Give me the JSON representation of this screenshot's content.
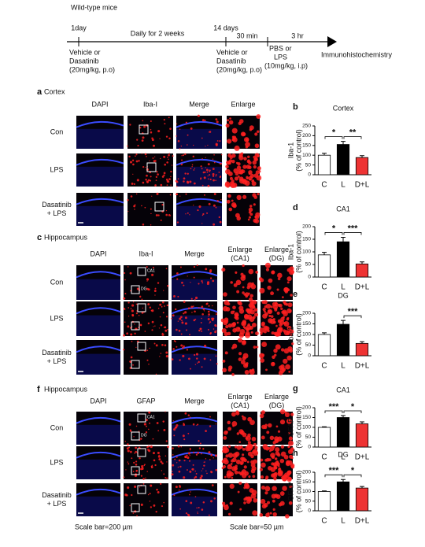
{
  "timeline": {
    "title": "Wild-type mice",
    "day1": "1day",
    "daily": "Daily for 2 weeks",
    "day14": "14 days",
    "min30": "30 min",
    "hr3": "3 hr",
    "treat1": [
      "Vehicle or",
      "Dasatinib",
      "(20mg/kg, p.o)"
    ],
    "treat2": [
      "Vehicle or",
      "Dasatinib",
      "(20mg/kg, p.o)"
    ],
    "treat3": [
      "PBS or",
      "LPS",
      "(10mg/kg, i.p)"
    ],
    "end": "Immunohistochemistry"
  },
  "panels": {
    "a": {
      "letter": "a",
      "title": "Cortex",
      "columns": [
        "DAPI",
        "Iba-I",
        "Merge",
        "Enlarge"
      ],
      "rows": [
        "Con",
        "LPS",
        [
          "Dasatinib",
          "+ LPS"
        ]
      ]
    },
    "c": {
      "letter": "c",
      "title": "Hippocampus",
      "columns": [
        "DAPI",
        "Iba-I",
        "Merge",
        [
          "Enlarge",
          "(CA1)"
        ],
        [
          "Enlarge",
          "(DG)"
        ]
      ],
      "rows": [
        "Con",
        "LPS",
        [
          "Dasatinib",
          "+ LPS"
        ]
      ],
      "insets": [
        "CA1",
        "DG"
      ]
    },
    "f": {
      "letter": "f",
      "title": "Hippocampus",
      "columns": [
        "DAPI",
        "GFAP",
        "Merge",
        [
          "Enlarge",
          "(CA1)"
        ],
        [
          "Enlarge",
          "(DG)"
        ]
      ],
      "rows": [
        "Con",
        "LPS",
        [
          "Dasatinib",
          "+ LPS"
        ]
      ],
      "insets": [
        "CA1",
        "DG"
      ]
    }
  },
  "scale_bars": [
    "Scale bar=200 µm",
    "Scale bar=50 µm"
  ],
  "chart_data": [
    {
      "type": "bar",
      "letter": "b",
      "title": "Cortex",
      "y_label": [
        "Iba-1",
        "(% of control)"
      ],
      "categories": [
        "C",
        "L",
        "D+L"
      ],
      "values": [
        100,
        155,
        88
      ],
      "errors": [
        10,
        16,
        10
      ],
      "colors": [
        "#ffffff",
        "#000000",
        "#ee3333"
      ],
      "ylim": [
        0,
        250
      ],
      "yticks": [
        0,
        50,
        100,
        150,
        200,
        250
      ],
      "significance": [
        {
          "label": "*",
          "from": 0,
          "to": 1
        },
        {
          "label": "**",
          "from": 1,
          "to": 2
        }
      ]
    },
    {
      "type": "bar",
      "letter": "d",
      "title": "CA1",
      "y_label": [
        "Iba-1",
        "(% of control)"
      ],
      "categories": [
        "C",
        "L",
        "D+L"
      ],
      "values": [
        88,
        140,
        52
      ],
      "errors": [
        10,
        18,
        8
      ],
      "colors": [
        "#ffffff",
        "#000000",
        "#ee3333"
      ],
      "ylim": [
        0,
        200
      ],
      "yticks": [
        0,
        50,
        100,
        150,
        200
      ],
      "significance": [
        {
          "label": "*",
          "from": 0,
          "to": 1
        },
        {
          "label": "***",
          "from": 1,
          "to": 2
        }
      ]
    },
    {
      "type": "bar",
      "letter": "e",
      "title": "DG",
      "y_label": [
        "Iba-1",
        "(% of control)"
      ],
      "categories": [
        "C",
        "L",
        "D+L"
      ],
      "values": [
        100,
        148,
        58
      ],
      "errors": [
        8,
        18,
        8
      ],
      "colors": [
        "#ffffff",
        "#000000",
        "#ee3333"
      ],
      "ylim": [
        0,
        200
      ],
      "yticks": [
        0,
        50,
        100,
        150,
        200
      ],
      "significance": [
        {
          "label": "***",
          "from": 1,
          "to": 2
        }
      ]
    },
    {
      "type": "bar",
      "letter": "g",
      "title": "CA1",
      "y_label": [
        "GFAP",
        "(% of control)"
      ],
      "categories": [
        "C",
        "L",
        "D+L"
      ],
      "values": [
        100,
        150,
        118
      ],
      "errors": [
        3,
        10,
        10
      ],
      "colors": [
        "#ffffff",
        "#000000",
        "#ee3333"
      ],
      "ylim": [
        0,
        200
      ],
      "yticks": [
        0,
        50,
        100,
        150,
        200
      ],
      "significance": [
        {
          "label": "***",
          "from": 0,
          "to": 1
        },
        {
          "label": "*",
          "from": 1,
          "to": 2
        }
      ]
    },
    {
      "type": "bar",
      "letter": "h",
      "title": "DG",
      "y_label": [
        "GFAP",
        "(% of control)"
      ],
      "categories": [
        "C",
        "L",
        "D+L"
      ],
      "values": [
        100,
        150,
        118
      ],
      "errors": [
        3,
        12,
        8
      ],
      "colors": [
        "#ffffff",
        "#000000",
        "#ee3333"
      ],
      "ylim": [
        0,
        200
      ],
      "yticks": [
        0,
        50,
        100,
        150,
        200
      ],
      "significance": [
        {
          "label": "***",
          "from": 0,
          "to": 1
        },
        {
          "label": "*",
          "from": 1,
          "to": 2
        }
      ]
    }
  ]
}
